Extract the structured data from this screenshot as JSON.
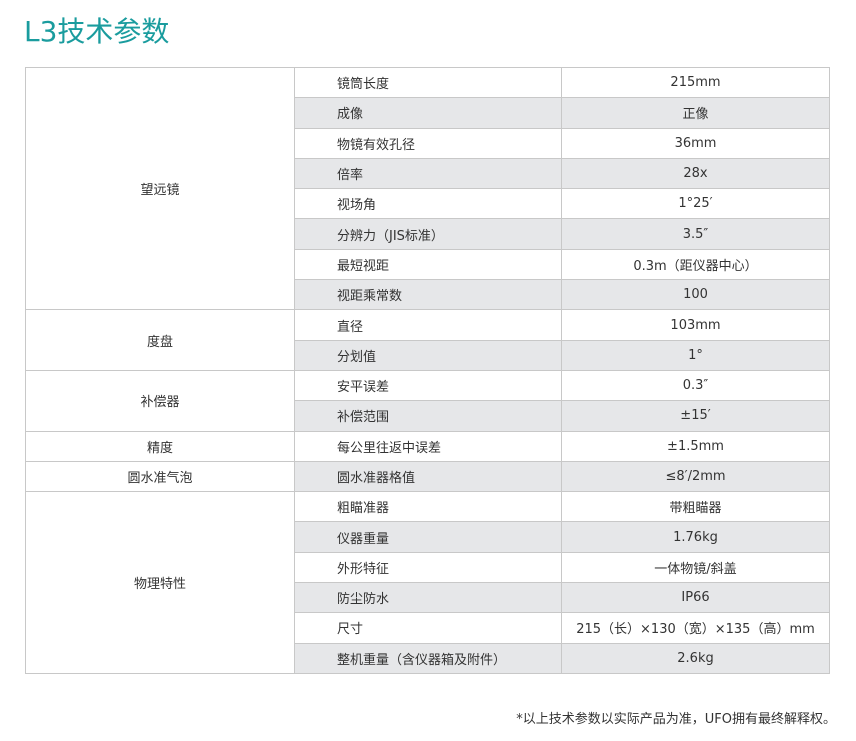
{
  "title": "L3技术参数",
  "groups": [
    {
      "label": "望远镜",
      "rows": [
        {
          "name": "镜筒长度",
          "value": "215mm"
        },
        {
          "name": "成像",
          "value": "正像"
        },
        {
          "name": "物镜有效孔径",
          "value": "36mm"
        },
        {
          "name": "倍率",
          "value": "28x"
        },
        {
          "name": "视场角",
          "value": "1°25′"
        },
        {
          "name": "分辨力（JIS标准）",
          "value": "3.5″"
        },
        {
          "name": "最短视距",
          "value": "0.3m（距仪器中心）"
        },
        {
          "name": "视距乘常数",
          "value": "100"
        }
      ]
    },
    {
      "label": "度盘",
      "rows": [
        {
          "name": "直径",
          "value": "103mm"
        },
        {
          "name": "分划值",
          "value": "1°"
        }
      ]
    },
    {
      "label": "补偿器",
      "rows": [
        {
          "name": "安平误差",
          "value": "0.3″"
        },
        {
          "name": "补偿范围",
          "value": "±15′"
        }
      ]
    },
    {
      "label": "精度",
      "rows": [
        {
          "name": "每公里往返中误差",
          "value": "±1.5mm"
        }
      ]
    },
    {
      "label": "圆水准气泡",
      "rows": [
        {
          "name": "圆水准器格值",
          "value": "≤8′/2mm"
        }
      ]
    },
    {
      "label": "物理特性",
      "rows": [
        {
          "name": "粗瞄准器",
          "value": "带粗瞄器"
        },
        {
          "name": "仪器重量",
          "value": "1.76kg"
        },
        {
          "name": "外形特征",
          "value": "一体物镜/斜盖"
        },
        {
          "name": "防尘防水",
          "value": "IP66"
        },
        {
          "name": "尺寸",
          "value": "215（长）×130（宽）×135（高）mm"
        },
        {
          "name": "整机重量（含仪器箱及附件）",
          "value": "2.6kg"
        }
      ]
    }
  ],
  "note": "*以上技术参数以实际产品为准，UFO拥有最终解释权。",
  "colors": {
    "title": "#1a9c9e",
    "row_alt": "#e6e7e9",
    "border": "#c8c8c8"
  }
}
